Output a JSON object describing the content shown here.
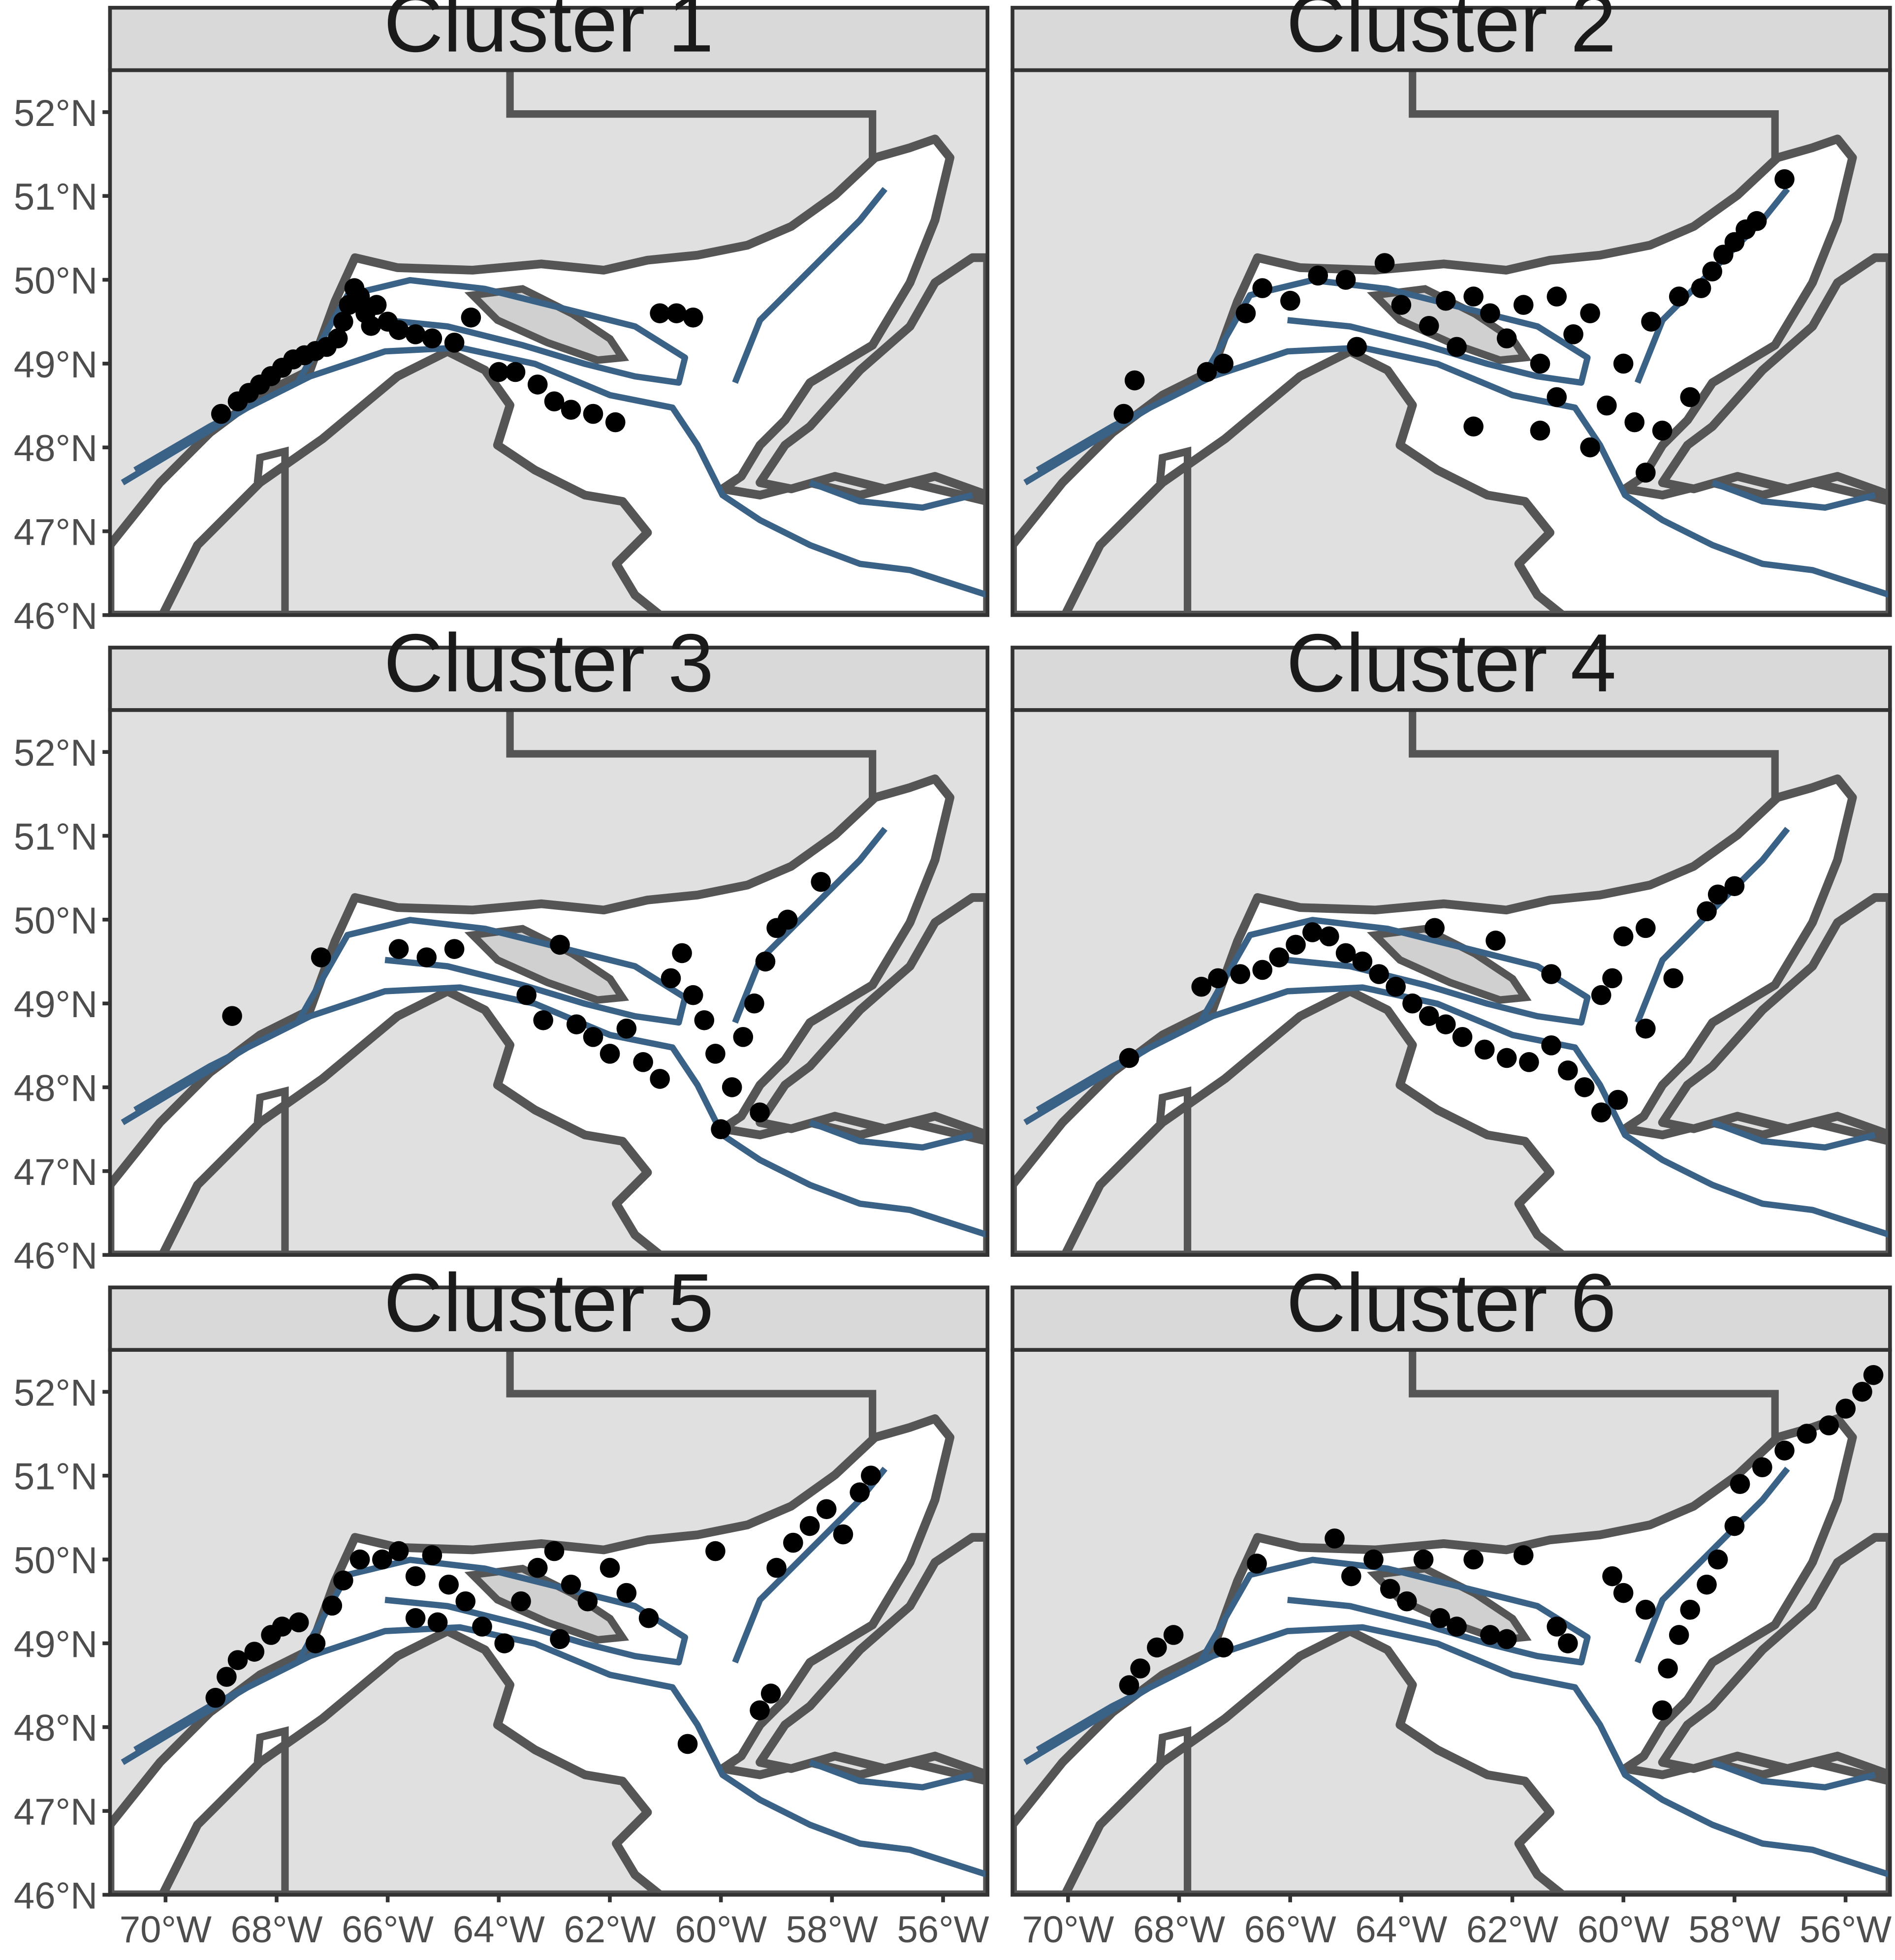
{
  "figure": {
    "panels": [
      {
        "title": "Cluster 1"
      },
      {
        "title": "Cluster 2"
      },
      {
        "title": "Cluster 3"
      },
      {
        "title": "Cluster 4"
      },
      {
        "title": "Cluster 5"
      },
      {
        "title": "Cluster 6"
      }
    ],
    "axes": {
      "x_ticks": [
        "70°W",
        "68°W",
        "66°W",
        "64°W",
        "62°W",
        "60°W",
        "58°W",
        "56°W"
      ],
      "x_values": [
        -70,
        -68,
        -66,
        -64,
        -62,
        -60,
        -58,
        -56
      ],
      "y_ticks": [
        "52°N",
        "51°N",
        "50°N",
        "49°N",
        "48°N",
        "47°N",
        "46°N"
      ],
      "y_values": [
        52,
        51,
        50,
        49,
        48,
        47,
        46
      ],
      "xlim": [
        -71,
        -55.2
      ],
      "ylim": [
        46,
        52.5
      ]
    },
    "colors": {
      "land": "#e0e0e0",
      "sea": "#ffffff",
      "coastline": "#555555",
      "isobath": "#3a6186",
      "points": "#000000",
      "strip": "#d9d9d9"
    }
  },
  "chart_data": {
    "type": "scatter",
    "xlim": [
      -71,
      -55.2
    ],
    "ylim": [
      46,
      52.5
    ],
    "series": [
      {
        "name": "Cluster 1",
        "points": [
          [
            -69.0,
            48.4
          ],
          [
            -68.7,
            48.55
          ],
          [
            -68.5,
            48.65
          ],
          [
            -68.3,
            48.75
          ],
          [
            -68.1,
            48.85
          ],
          [
            -67.9,
            48.95
          ],
          [
            -67.7,
            49.05
          ],
          [
            -67.5,
            49.1
          ],
          [
            -67.3,
            49.15
          ],
          [
            -67.1,
            49.2
          ],
          [
            -66.9,
            49.3
          ],
          [
            -66.8,
            49.5
          ],
          [
            -66.7,
            49.7
          ],
          [
            -66.6,
            49.9
          ],
          [
            -66.5,
            49.8
          ],
          [
            -66.4,
            49.6
          ],
          [
            -66.3,
            49.45
          ],
          [
            -66.2,
            49.7
          ],
          [
            -66.0,
            49.5
          ],
          [
            -65.8,
            49.4
          ],
          [
            -65.5,
            49.35
          ],
          [
            -65.2,
            49.3
          ],
          [
            -64.8,
            49.25
          ],
          [
            -64.5,
            49.55
          ],
          [
            -64.0,
            48.9
          ],
          [
            -63.7,
            48.9
          ],
          [
            -63.3,
            48.75
          ],
          [
            -63.0,
            48.55
          ],
          [
            -62.7,
            48.45
          ],
          [
            -62.3,
            48.4
          ],
          [
            -61.9,
            48.3
          ],
          [
            -61.1,
            49.6
          ],
          [
            -60.8,
            49.6
          ],
          [
            -60.5,
            49.55
          ]
        ]
      },
      {
        "name": "Cluster 2",
        "points": [
          [
            -69.0,
            48.4
          ],
          [
            -68.8,
            48.8
          ],
          [
            -67.5,
            48.9
          ],
          [
            -67.2,
            49.0
          ],
          [
            -66.8,
            49.6
          ],
          [
            -66.5,
            49.9
          ],
          [
            -66.0,
            49.75
          ],
          [
            -65.5,
            50.05
          ],
          [
            -65.0,
            50.0
          ],
          [
            -64.8,
            49.2
          ],
          [
            -64.3,
            50.2
          ],
          [
            -64.0,
            49.7
          ],
          [
            -63.5,
            49.45
          ],
          [
            -63.2,
            49.75
          ],
          [
            -63.0,
            49.2
          ],
          [
            -62.7,
            49.8
          ],
          [
            -62.4,
            49.6
          ],
          [
            -62.1,
            49.3
          ],
          [
            -61.8,
            49.7
          ],
          [
            -61.5,
            49.0
          ],
          [
            -61.2,
            49.8
          ],
          [
            -61.2,
            48.6
          ],
          [
            -60.9,
            49.35
          ],
          [
            -60.6,
            49.6
          ],
          [
            -60.6,
            48.0
          ],
          [
            -60.3,
            48.5
          ],
          [
            -60.0,
            49.0
          ],
          [
            -59.8,
            48.3
          ],
          [
            -59.6,
            47.7
          ],
          [
            -59.5,
            49.5
          ],
          [
            -59.3,
            48.2
          ],
          [
            -59.0,
            49.8
          ],
          [
            -58.8,
            48.6
          ],
          [
            -58.6,
            49.9
          ],
          [
            -58.4,
            50.1
          ],
          [
            -58.2,
            50.3
          ],
          [
            -58.0,
            50.45
          ],
          [
            -57.8,
            50.6
          ],
          [
            -57.6,
            50.7
          ],
          [
            -57.1,
            51.2
          ],
          [
            -62.7,
            48.25
          ],
          [
            -61.5,
            48.2
          ]
        ]
      },
      {
        "name": "Cluster 3",
        "points": [
          [
            -68.8,
            48.85
          ],
          [
            -67.2,
            49.55
          ],
          [
            -65.8,
            49.65
          ],
          [
            -65.3,
            49.55
          ],
          [
            -64.8,
            49.65
          ],
          [
            -63.5,
            49.1
          ],
          [
            -63.2,
            48.8
          ],
          [
            -62.9,
            49.7
          ],
          [
            -62.6,
            48.75
          ],
          [
            -62.3,
            48.6
          ],
          [
            -62.0,
            48.4
          ],
          [
            -61.7,
            48.7
          ],
          [
            -61.4,
            48.3
          ],
          [
            -61.1,
            48.1
          ],
          [
            -60.9,
            49.3
          ],
          [
            -60.7,
            49.6
          ],
          [
            -60.5,
            49.1
          ],
          [
            -60.3,
            48.8
          ],
          [
            -60.1,
            48.4
          ],
          [
            -60.0,
            47.5
          ],
          [
            -59.8,
            48.0
          ],
          [
            -59.6,
            48.6
          ],
          [
            -59.4,
            49.0
          ],
          [
            -59.2,
            49.5
          ],
          [
            -59.0,
            49.9
          ],
          [
            -58.8,
            50.0
          ],
          [
            -59.3,
            47.7
          ],
          [
            -58.2,
            50.45
          ]
        ]
      },
      {
        "name": "Cluster 4",
        "points": [
          [
            -68.9,
            48.35
          ],
          [
            -67.6,
            49.2
          ],
          [
            -67.3,
            49.3
          ],
          [
            -66.9,
            49.35
          ],
          [
            -66.5,
            49.4
          ],
          [
            -66.2,
            49.55
          ],
          [
            -65.9,
            49.7
          ],
          [
            -65.6,
            49.85
          ],
          [
            -65.3,
            49.8
          ],
          [
            -65.0,
            49.6
          ],
          [
            -64.7,
            49.5
          ],
          [
            -64.4,
            49.35
          ],
          [
            -64.1,
            49.2
          ],
          [
            -63.8,
            49.0
          ],
          [
            -63.5,
            48.85
          ],
          [
            -63.2,
            48.75
          ],
          [
            -62.9,
            48.6
          ],
          [
            -62.5,
            48.45
          ],
          [
            -62.1,
            48.35
          ],
          [
            -61.7,
            48.3
          ],
          [
            -61.3,
            48.5
          ],
          [
            -61.0,
            48.2
          ],
          [
            -60.7,
            48.0
          ],
          [
            -60.4,
            47.7
          ],
          [
            -60.1,
            47.85
          ],
          [
            -60.4,
            49.1
          ],
          [
            -60.2,
            49.3
          ],
          [
            -59.6,
            48.7
          ],
          [
            -59.1,
            49.3
          ],
          [
            -63.4,
            49.9
          ],
          [
            -62.3,
            49.75
          ],
          [
            -61.3,
            49.35
          ],
          [
            -60.0,
            49.8
          ],
          [
            -58.5,
            50.1
          ],
          [
            -58.3,
            50.3
          ],
          [
            -58.0,
            50.4
          ],
          [
            -59.6,
            49.9
          ]
        ]
      },
      {
        "name": "Cluster 5",
        "points": [
          [
            -69.1,
            48.35
          ],
          [
            -68.9,
            48.6
          ],
          [
            -68.7,
            48.8
          ],
          [
            -68.4,
            48.9
          ],
          [
            -68.1,
            49.1
          ],
          [
            -67.9,
            49.2
          ],
          [
            -67.6,
            49.25
          ],
          [
            -67.3,
            49.0
          ],
          [
            -67.0,
            49.45
          ],
          [
            -66.8,
            49.75
          ],
          [
            -66.5,
            50.0
          ],
          [
            -66.1,
            50.0
          ],
          [
            -65.8,
            50.1
          ],
          [
            -65.5,
            49.8
          ],
          [
            -65.2,
            50.05
          ],
          [
            -64.9,
            49.7
          ],
          [
            -64.6,
            49.5
          ],
          [
            -64.3,
            49.2
          ],
          [
            -63.9,
            49.0
          ],
          [
            -63.6,
            49.5
          ],
          [
            -63.3,
            49.9
          ],
          [
            -63.0,
            50.1
          ],
          [
            -62.7,
            49.7
          ],
          [
            -62.4,
            49.5
          ],
          [
            -62.0,
            49.9
          ],
          [
            -61.7,
            49.6
          ],
          [
            -61.3,
            49.3
          ],
          [
            -65.5,
            49.3
          ],
          [
            -65.1,
            49.25
          ],
          [
            -62.9,
            49.05
          ],
          [
            -60.6,
            47.8
          ],
          [
            -59.3,
            48.2
          ],
          [
            -59.1,
            48.4
          ],
          [
            -59.0,
            49.9
          ],
          [
            -58.7,
            50.2
          ],
          [
            -58.4,
            50.4
          ],
          [
            -58.1,
            50.6
          ],
          [
            -57.8,
            50.3
          ],
          [
            -57.5,
            50.8
          ],
          [
            -57.3,
            51.0
          ],
          [
            -60.1,
            50.1
          ]
        ]
      },
      {
        "name": "Cluster 6",
        "points": [
          [
            -68.9,
            48.5
          ],
          [
            -68.7,
            48.7
          ],
          [
            -68.4,
            48.95
          ],
          [
            -68.1,
            49.1
          ],
          [
            -67.2,
            48.95
          ],
          [
            -66.6,
            49.95
          ],
          [
            -65.2,
            50.25
          ],
          [
            -64.9,
            49.8
          ],
          [
            -64.5,
            50.0
          ],
          [
            -64.2,
            49.65
          ],
          [
            -63.9,
            49.5
          ],
          [
            -63.6,
            50.0
          ],
          [
            -63.3,
            49.3
          ],
          [
            -63.0,
            49.2
          ],
          [
            -62.7,
            50.0
          ],
          [
            -62.4,
            49.1
          ],
          [
            -62.1,
            49.05
          ],
          [
            -61.8,
            50.05
          ],
          [
            -61.2,
            49.2
          ],
          [
            -61.0,
            49.0
          ],
          [
            -60.2,
            49.8
          ],
          [
            -60.0,
            49.6
          ],
          [
            -59.6,
            49.4
          ],
          [
            -59.3,
            48.2
          ],
          [
            -59.2,
            48.7
          ],
          [
            -59.0,
            49.1
          ],
          [
            -58.8,
            49.4
          ],
          [
            -58.5,
            49.7
          ],
          [
            -58.3,
            50.0
          ],
          [
            -58.0,
            50.4
          ],
          [
            -57.9,
            50.9
          ],
          [
            -57.5,
            51.1
          ],
          [
            -57.1,
            51.3
          ],
          [
            -56.7,
            51.5
          ],
          [
            -56.3,
            51.6
          ],
          [
            -56.0,
            51.8
          ],
          [
            -55.7,
            52.0
          ],
          [
            -55.5,
            52.2
          ]
        ]
      }
    ]
  }
}
